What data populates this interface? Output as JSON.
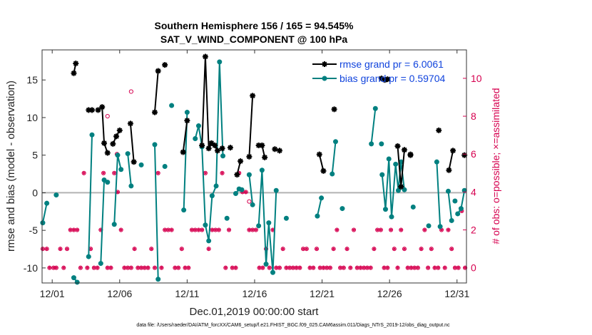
{
  "chart_data": {
    "type": "line",
    "title": "Southern Hemisphere 156 / 165 = 94.545%",
    "subtitle": "SAT_V_WIND_COMPONENT @ 100 hPa",
    "xlabel": "Dec.01,2019 00:00:00 start",
    "ylabel": "rmse and bias (model - observation)",
    "ylabel_right": "# of obs: o=possible; ×=assimilated",
    "footer": "data file: /Users/raeder/DAI/ATM_forcXX/CAM6_setup/f.e21.FHIST_BGC.f09_025.CAM6assim.011/Diags_NTrS_2019-12/obs_diag_output.nc",
    "xlim": [
      0.25,
      31.7
    ],
    "ylim": [
      -12,
      19
    ],
    "ylim_right": [
      -0.8,
      11.5
    ],
    "x_ticks": [
      1,
      6,
      11,
      16,
      21,
      26,
      31
    ],
    "x_tick_labels": [
      "12/01",
      "12/06",
      "12/11",
      "12/16",
      "12/21",
      "12/26",
      "12/31"
    ],
    "y_ticks": [
      -10,
      -5,
      0,
      5,
      10,
      15
    ],
    "y_tick_labels": [
      "-10",
      "-5",
      "0",
      "5",
      "10",
      "15"
    ],
    "y_ticks_right": [
      0,
      2,
      4,
      6,
      8,
      10
    ],
    "y_tick_labels_right": [
      "0",
      "2",
      "4",
      "6",
      "8",
      "10"
    ],
    "legend_position": "top-right",
    "colors": {
      "rmse": "#000000",
      "bias": "#008080",
      "obs": "#d6004f",
      "zero_line": "#b3b3b3"
    },
    "series": [
      {
        "name": "rmse grand pr = 6.0061",
        "segments": [
          [
            [
              2.6,
              15.9
            ],
            [
              2.75,
              17.2
            ]
          ],
          [
            [
              3.7,
              11.0
            ],
            [
              3.95,
              11.0
            ]
          ],
          [
            [
              4.7,
              11.4
            ],
            [
              4.85,
              6.6
            ],
            [
              5.1,
              5.3
            ]
          ],
          [
            [
              5.5,
              6.5
            ],
            [
              5.75,
              7.5
            ],
            [
              6.0,
              8.3
            ]
          ],
          [
            [
              6.8,
              9.2
            ],
            [
              7.05,
              4.1
            ]
          ],
          [
            [
              8.6,
              10.7
            ],
            [
              8.85,
              16.2
            ]
          ],
          [
            [
              10.7,
              5.4
            ],
            [
              11.0,
              9.6
            ]
          ],
          [
            [
              12.1,
              6.3
            ],
            [
              12.35,
              18.1
            ],
            [
              12.6,
              5.9
            ],
            [
              12.8,
              6.6
            ],
            [
              13.05,
              6.3
            ],
            [
              13.25,
              5.6
            ]
          ],
          [
            [
              14.7,
              2.4
            ],
            [
              14.95,
              4.2
            ]
          ],
          [
            [
              15.6,
              4.8
            ],
            [
              15.85,
              12.9
            ]
          ],
          [
            [
              16.3,
              6.3
            ],
            [
              16.55,
              6.3
            ],
            [
              16.75,
              4.7
            ]
          ],
          [
            [
              20.8,
              5.1
            ],
            [
              21.1,
              2.9
            ]
          ],
          [
            [
              25.4,
              15.2
            ],
            [
              25.65,
              15.0
            ],
            [
              25.85,
              15.1
            ]
          ],
          [
            [
              26.6,
              6.2
            ],
            [
              26.85,
              0.8
            ],
            [
              27.1,
              5.7
            ]
          ],
          [
            [
              30.4,
              3.0
            ],
            [
              30.7,
              5.6
            ]
          ]
        ],
        "points": [
          [
            4.4,
            11.0
          ],
          [
            9.35,
            17.0
          ],
          [
            13.6,
            5.9
          ],
          [
            14.2,
            6.0
          ],
          [
            17.5,
            5.8
          ],
          [
            17.85,
            5.6
          ],
          [
            21.9,
            11.1
          ],
          [
            27.55,
            5.0
          ],
          [
            29.65,
            8.3
          ],
          [
            31.55,
            5.0
          ],
          [
            27.55,
            5.1
          ]
        ]
      },
      {
        "name": "bias grand pr = 0.59704",
        "segments": [
          [
            [
              0.3,
              -4.0
            ],
            [
              0.6,
              -1.4
            ]
          ],
          [
            [
              2.6,
              -11.3
            ],
            [
              2.85,
              -11.9
            ]
          ],
          [
            [
              3.7,
              -8.5
            ],
            [
              3.95,
              7.7
            ]
          ],
          [
            [
              4.6,
              -9.4
            ],
            [
              4.85,
              1.7
            ],
            [
              5.1,
              1.4
            ]
          ],
          [
            [
              5.6,
              -4.2
            ],
            [
              5.85,
              5.0
            ],
            [
              6.1,
              3.1
            ]
          ],
          [
            [
              6.6,
              5.2
            ],
            [
              6.85,
              0.9
            ]
          ],
          [
            [
              8.6,
              6.4
            ],
            [
              8.85,
              -11.5
            ]
          ],
          [
            [
              10.75,
              -2.3
            ],
            [
              11.0,
              10.7
            ]
          ],
          [
            [
              11.6,
              7.2
            ],
            [
              11.85,
              8.9
            ],
            [
              12.1,
              6.1
            ],
            [
              12.35,
              -4.3
            ],
            [
              12.6,
              -6.4
            ],
            [
              12.85,
              -0.4
            ],
            [
              13.15,
              0.9
            ],
            [
              13.4,
              17.4
            ],
            [
              13.65,
              4.9
            ]
          ],
          [
            [
              14.6,
              -0.1
            ],
            [
              14.85,
              0.5
            ],
            [
              15.05,
              0.4
            ]
          ],
          [
            [
              15.6,
              2.4
            ],
            [
              15.85,
              -1.6
            ]
          ],
          [
            [
              16.3,
              -4.4
            ],
            [
              16.55,
              3.0
            ],
            [
              16.85,
              -9.5
            ],
            [
              17.05,
              -4.0
            ],
            [
              17.35,
              -10.6
            ],
            [
              17.6,
              0.3
            ]
          ],
          [
            [
              20.65,
              -3.1
            ],
            [
              20.95,
              -0.7
            ]
          ],
          [
            [
              21.75,
              2.5
            ],
            [
              22.0,
              6.8
            ]
          ],
          [
            [
              24.65,
              6.5
            ],
            [
              24.95,
              11.2
            ]
          ],
          [
            [
              25.45,
              2.4
            ],
            [
              25.7,
              -2.2
            ],
            [
              25.95,
              4.5
            ],
            [
              26.15,
              -3.2
            ],
            [
              26.45,
              3.8
            ],
            [
              26.65,
              0.3
            ],
            [
              26.85,
              4.1
            ],
            [
              27.1,
              0.4
            ]
          ],
          [
            [
              29.5,
              4.1
            ],
            [
              29.75,
              -4.5
            ]
          ],
          [
            [
              30.35,
              0.2
            ],
            [
              30.6,
              -3.7
            ]
          ],
          [
            [
              30.85,
              -1.1
            ]
          ],
          [
            [
              31.05,
              -2.8
            ],
            [
              31.3,
              -2.1
            ],
            [
              31.55,
              0.3
            ]
          ]
        ],
        "points": [
          [
            1.3,
            -0.3
          ],
          [
            7.6,
            3.7
          ],
          [
            9.35,
            3.5
          ],
          [
            9.85,
            11.6
          ],
          [
            13.95,
            -3.4
          ],
          [
            18.35,
            -3.4
          ],
          [
            22.5,
            -2.1
          ],
          [
            27.75,
            -1.9
          ],
          [
            28.9,
            -4.4
          ],
          [
            25.4,
            6.5
          ]
        ]
      },
      {
        "name": "obs possible",
        "marker": "circle",
        "x": [
          5.1,
          5.8,
          6.85,
          15.6
        ],
        "y": [
          8.0,
          6.0,
          9.3,
          3.5
        ]
      },
      {
        "name": "obs assimilated",
        "marker": "star",
        "x": [
          0.3,
          0.6,
          0.8,
          1.1,
          1.3,
          1.6,
          1.85,
          2.1,
          2.35,
          2.6,
          2.85,
          3.1,
          3.35,
          3.6,
          3.85,
          4.1,
          4.35,
          4.6,
          4.8,
          5.1,
          5.35,
          5.6,
          5.85,
          6.1,
          6.35,
          6.6,
          6.85,
          7.1,
          7.35,
          7.6,
          7.85,
          8.1,
          8.35,
          8.6,
          8.85,
          9.1,
          9.35,
          9.6,
          9.85,
          10.1,
          10.35,
          10.6,
          10.85,
          11.1,
          11.35,
          11.6,
          11.85,
          12.1,
          12.35,
          12.6,
          12.85,
          13.1,
          13.35,
          13.6,
          13.85,
          14.1,
          14.35,
          14.6,
          14.85,
          15.1,
          15.35,
          15.6,
          15.85,
          16.1,
          16.35,
          16.6,
          16.85,
          17.1,
          17.35,
          17.6,
          17.85,
          18.1,
          18.35,
          18.6,
          18.85,
          19.1,
          19.35,
          19.6,
          19.85,
          20.1,
          20.35,
          20.6,
          20.85,
          21.1,
          21.35,
          21.6,
          21.85,
          22.1,
          22.35,
          22.6,
          22.85,
          23.1,
          23.35,
          23.6,
          23.85,
          24.1,
          24.35,
          24.6,
          24.85,
          25.1,
          25.35,
          25.6,
          25.85,
          26.1,
          26.35,
          26.6,
          26.85,
          27.1,
          27.35,
          27.6,
          27.85,
          28.1,
          28.35,
          28.6,
          28.85,
          29.1,
          29.35,
          29.6,
          29.85,
          30.1,
          30.35,
          30.6,
          30.85,
          31.1,
          31.35,
          31.6
        ],
        "y": [
          1,
          1,
          0,
          0,
          0,
          1,
          0,
          1,
          2,
          2,
          2,
          0,
          5,
          0,
          1,
          0,
          0,
          2,
          5,
          0,
          0,
          5,
          4,
          2,
          0,
          0,
          0,
          1,
          0,
          0,
          0,
          0,
          1,
          0,
          5,
          0,
          2,
          2,
          2,
          0,
          0,
          1,
          0,
          0,
          2,
          2,
          2,
          2,
          5,
          1,
          2,
          2,
          2,
          5,
          0,
          2,
          0,
          0,
          5,
          4,
          4,
          2,
          2,
          2,
          0,
          0,
          1,
          0,
          2,
          0,
          0,
          1,
          0,
          0,
          0,
          0,
          0,
          1,
          1,
          0,
          0,
          1,
          0,
          0,
          0,
          0,
          1,
          2,
          0,
          0,
          1,
          0,
          2,
          0,
          0,
          0,
          0,
          0,
          1,
          2,
          2,
          0,
          0,
          2,
          1,
          0,
          2,
          1,
          0,
          0,
          0,
          0,
          1,
          2,
          0,
          1,
          0,
          0,
          2,
          0,
          2,
          1,
          0,
          0,
          3,
          0
        ]
      }
    ]
  }
}
